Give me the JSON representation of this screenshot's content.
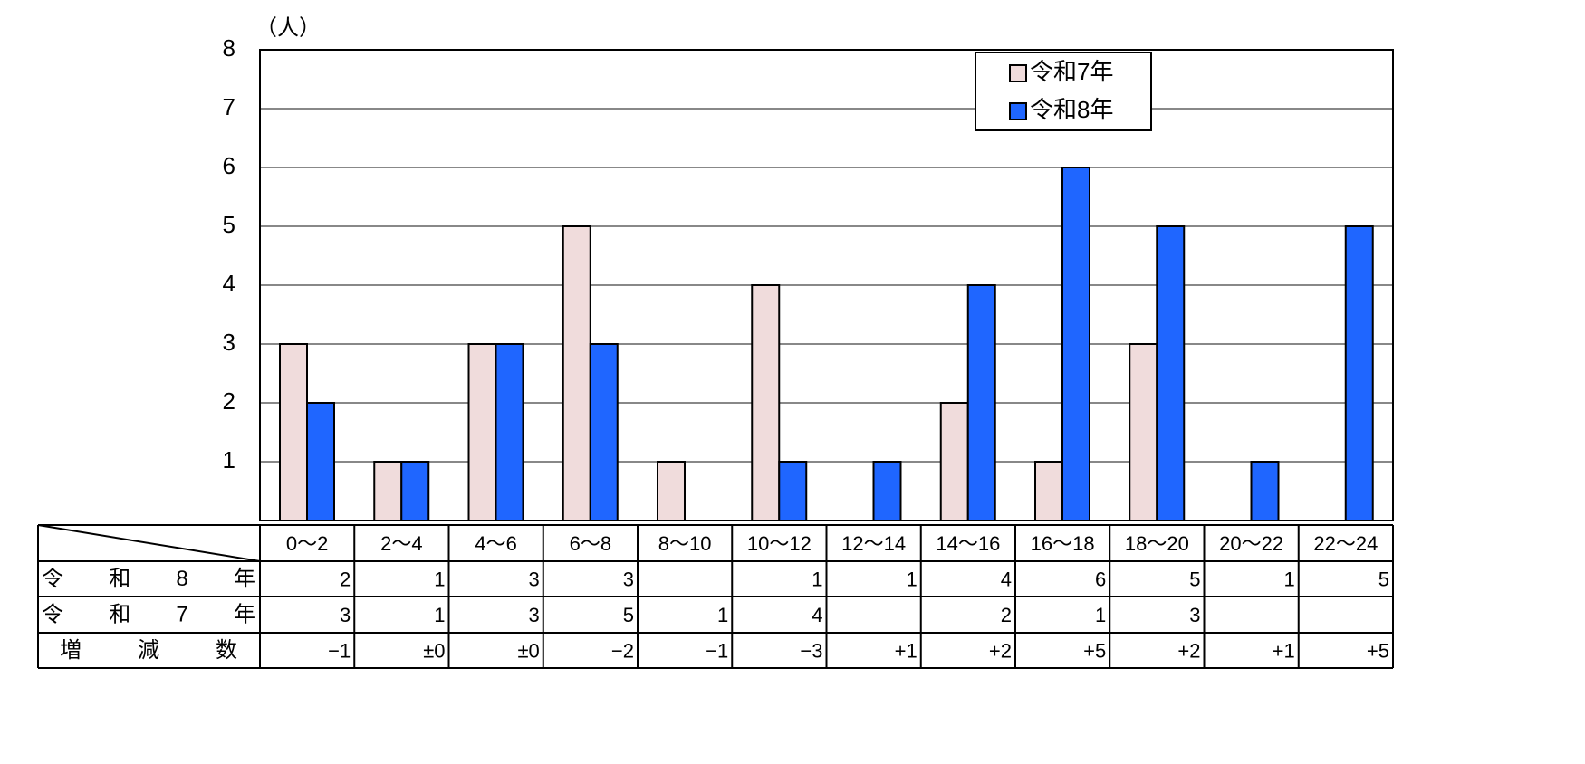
{
  "chart_data": {
    "type": "bar",
    "y_label": "（人）",
    "categories": [
      "0～2",
      "2～4",
      "4～6",
      "6～8",
      "8～10",
      "10～12",
      "12～14",
      "14～16",
      "16～18",
      "18～20",
      "20～22",
      "22～24"
    ],
    "series": [
      {
        "name": "令和7年",
        "color": "#f0dcdc",
        "values": [
          3,
          1,
          3,
          5,
          1,
          4,
          null,
          2,
          1,
          3,
          null,
          null
        ]
      },
      {
        "name": "令和8年",
        "color": "#1f66ff",
        "values": [
          2,
          1,
          3,
          3,
          null,
          1,
          1,
          4,
          6,
          5,
          1,
          5
        ]
      }
    ],
    "ylim": [
      0,
      8
    ],
    "yticks": [
      1,
      2,
      3,
      4,
      5,
      6,
      7,
      8
    ],
    "grid": true,
    "legend": "top-right",
    "table": {
      "row_labels": [
        "令和8年",
        "令和7年",
        "増減数"
      ],
      "change_labels": [
        "−1",
        "±0",
        "±0",
        "−2",
        "−1",
        "−3",
        "+1",
        "+2",
        "+5",
        "+2",
        "+1",
        "+5"
      ]
    }
  }
}
